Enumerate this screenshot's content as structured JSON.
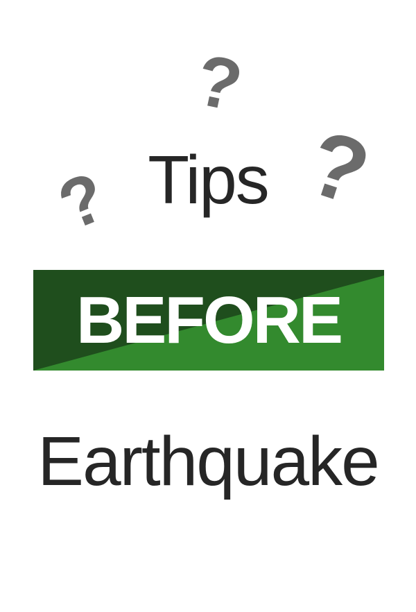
{
  "heading_top": "Tips",
  "banner": {
    "text": "BEFORE",
    "dark_color": "#1f4e1d",
    "light_color": "#338a2e"
  },
  "heading_bottom": "Earthquake",
  "icons": {
    "question_mark_glyph": "?",
    "question_mark_color": "#6b6b6b"
  }
}
